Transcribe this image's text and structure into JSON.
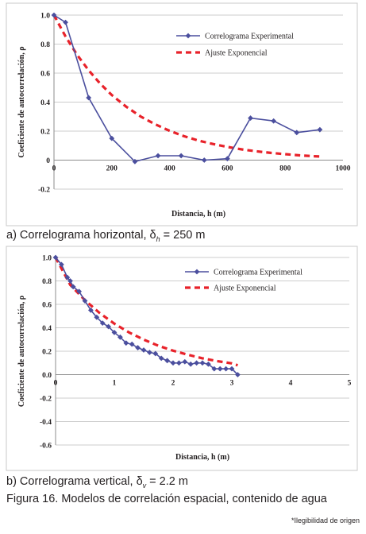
{
  "chart_data": [
    {
      "type": "line",
      "title": "",
      "xlabel": "Distancia, h (m)",
      "ylabel": "Coeficiente de autocorrelación, ρ",
      "xlim": [
        0,
        1000
      ],
      "ylim": [
        -0.2,
        1.0
      ],
      "xticks": [
        "0",
        "200",
        "400",
        "600",
        "800",
        "1000"
      ],
      "yticks": [
        "-0.2",
        "0",
        "0.2",
        "0.4",
        "0.6",
        "0.8",
        "1.0"
      ],
      "grid": "horizontal",
      "legend_position": "top-right",
      "series": [
        {
          "name": "Correlograma Experimental",
          "color": "#4b4f9e",
          "marker": "diamond",
          "x": [
            0,
            40,
            120,
            200,
            280,
            360,
            440,
            520,
            600,
            680,
            760,
            840,
            920
          ],
          "y": [
            1.0,
            0.95,
            0.43,
            0.15,
            -0.01,
            0.03,
            0.03,
            0.0,
            0.01,
            0.29,
            0.27,
            0.19,
            0.21
          ]
        },
        {
          "name": "Ajuste Exponencial",
          "color": "#e8222a",
          "style": "dashed",
          "x": [
            0,
            40,
            80,
            120,
            160,
            200,
            250,
            300,
            350,
            400,
            450,
            500,
            550,
            600,
            650,
            700,
            750,
            800,
            850,
            900,
            920
          ],
          "y": [
            1.0,
            0.852,
            0.726,
            0.619,
            0.527,
            0.449,
            0.368,
            0.301,
            0.247,
            0.202,
            0.165,
            0.135,
            0.111,
            0.091,
            0.074,
            0.061,
            0.05,
            0.041,
            0.033,
            0.027,
            0.025
          ]
        }
      ]
    },
    {
      "type": "line",
      "title": "",
      "xlabel": "Distancia, h (m)",
      "ylabel": "Coeficiente de autocorrelación, ρ",
      "xlim": [
        0,
        5
      ],
      "ylim": [
        -0.6,
        1.0
      ],
      "xticks": [
        "0",
        "1",
        "2",
        "3",
        "4",
        "5"
      ],
      "yticks": [
        "-0.6",
        "-0.4",
        "-0.2",
        "0.0",
        "0.2",
        "0.4",
        "0.6",
        "0.8",
        "1.0"
      ],
      "grid": "horizontal",
      "legend_position": "top-right",
      "series": [
        {
          "name": "Correlograma Experimental",
          "color": "#4b4f9e",
          "marker": "diamond",
          "x": [
            0,
            0.1,
            0.2,
            0.25,
            0.3,
            0.4,
            0.5,
            0.6,
            0.7,
            0.8,
            0.9,
            1.0,
            1.1,
            1.2,
            1.3,
            1.4,
            1.5,
            1.6,
            1.7,
            1.8,
            1.9,
            2.0,
            2.1,
            2.2,
            2.3,
            2.4,
            2.5,
            2.6,
            2.7,
            2.8,
            2.9,
            3.0,
            3.1
          ],
          "y": [
            1.0,
            0.94,
            0.83,
            0.8,
            0.75,
            0.71,
            0.63,
            0.55,
            0.49,
            0.44,
            0.41,
            0.36,
            0.32,
            0.27,
            0.26,
            0.23,
            0.21,
            0.19,
            0.18,
            0.14,
            0.12,
            0.1,
            0.1,
            0.11,
            0.09,
            0.1,
            0.1,
            0.09,
            0.05,
            0.05,
            0.05,
            0.05,
            0.0
          ]
        },
        {
          "name": "Ajuste Exponencial",
          "color": "#e8222a",
          "style": "dashed",
          "x": [
            0,
            0.25,
            0.5,
            0.75,
            1.0,
            1.25,
            1.5,
            1.75,
            2.0,
            2.25,
            2.5,
            2.75,
            3.0,
            3.1
          ],
          "y": [
            1.0,
            0.766,
            0.635,
            0.526,
            0.435,
            0.361,
            0.299,
            0.247,
            0.205,
            0.17,
            0.14,
            0.116,
            0.096,
            0.08
          ]
        }
      ]
    }
  ],
  "captions": {
    "a_prefix": "a) Correlograma horizontal, δ",
    "a_sub": "h",
    "a_value": " = 250 m",
    "b_prefix": "b) Correlograma vertical, δ",
    "b_sub": "v",
    "b_value": " = 2.2 m",
    "figure": "Figura 16. Modelos de correlación espacial, contenido de agua"
  },
  "note": "*Ilegibilidad de origen"
}
